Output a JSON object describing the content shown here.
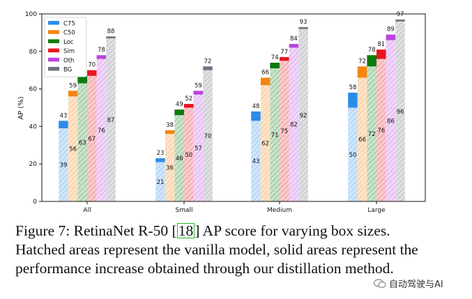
{
  "chart_data": {
    "type": "bar",
    "categories": [
      "All",
      "Small",
      "Medium",
      "Large"
    ],
    "ylabel": "AP (%)",
    "xlabel": "",
    "ylim": [
      0,
      100
    ],
    "yticks": [
      0,
      20,
      40,
      60,
      80,
      100
    ],
    "grid": false,
    "legend_position": "top-left",
    "series": [
      {
        "name": "C75",
        "color": "#2b8ce8",
        "base": [
          39,
          21,
          43,
          50
        ],
        "total": [
          43,
          23,
          48,
          58
        ]
      },
      {
        "name": "C50",
        "color": "#f5850f",
        "base": [
          56,
          36,
          62,
          66
        ],
        "total": [
          59,
          38,
          66,
          72
        ]
      },
      {
        "name": "Loc",
        "color": "#0c7a0c",
        "base": [
          63,
          46,
          71,
          72
        ],
        "total": [
          67,
          49,
          74,
          78
        ]
      },
      {
        "name": "Sim",
        "color": "#e8141e",
        "base": [
          67,
          50,
          75,
          76
        ],
        "total": [
          70,
          52,
          77,
          81
        ]
      },
      {
        "name": "Oth",
        "color": "#bb44dd",
        "base": [
          76,
          57,
          82,
          86
        ],
        "total": [
          78,
          59,
          84,
          89
        ]
      },
      {
        "name": "BG",
        "color": "#6c7480",
        "base": [
          87,
          70,
          92,
          96
        ],
        "total": [
          88,
          72,
          93,
          97
        ]
      }
    ]
  },
  "caption": {
    "prefix": "Figure 7: RetinaNet R-50 [",
    "ref": "18",
    "suffix": "] AP score for varying box sizes. Hatched areas represent the vanilla model, solid areas represent the performance increase obtained through our distillation method."
  },
  "watermark": {
    "text": "自动驾驶与AI"
  }
}
